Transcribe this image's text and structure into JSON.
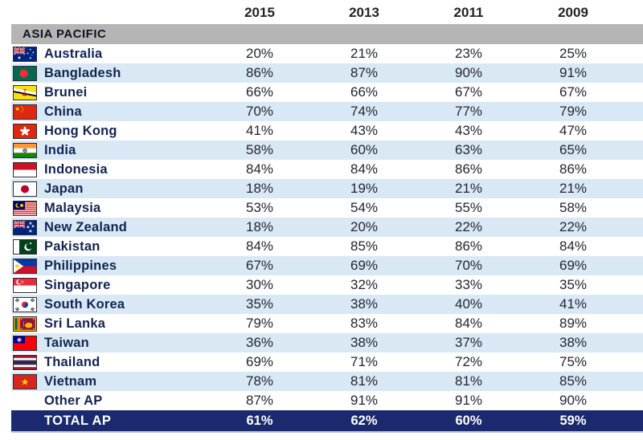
{
  "header": {
    "years": [
      "2015",
      "2013",
      "2011",
      "2009"
    ]
  },
  "section": {
    "label": "ASIA PACIFIC"
  },
  "table": {
    "columns": [
      "2015",
      "2013",
      "2011",
      "2009"
    ],
    "rows": [
      {
        "country": "Australia",
        "flag": "australia",
        "values": [
          "20%",
          "21%",
          "23%",
          "25%"
        ]
      },
      {
        "country": "Bangladesh",
        "flag": "bangladesh",
        "values": [
          "86%",
          "87%",
          "90%",
          "91%"
        ]
      },
      {
        "country": "Brunei",
        "flag": "brunei",
        "values": [
          "66%",
          "66%",
          "67%",
          "67%"
        ]
      },
      {
        "country": "China",
        "flag": "china",
        "values": [
          "70%",
          "74%",
          "77%",
          "79%"
        ]
      },
      {
        "country": "Hong Kong",
        "flag": "hongkong",
        "values": [
          "41%",
          "43%",
          "43%",
          "47%"
        ]
      },
      {
        "country": "India",
        "flag": "india",
        "values": [
          "58%",
          "60%",
          "63%",
          "65%"
        ]
      },
      {
        "country": "Indonesia",
        "flag": "indonesia",
        "values": [
          "84%",
          "84%",
          "86%",
          "86%"
        ]
      },
      {
        "country": "Japan",
        "flag": "japan",
        "values": [
          "18%",
          "19%",
          "21%",
          "21%"
        ]
      },
      {
        "country": "Malaysia",
        "flag": "malaysia",
        "values": [
          "53%",
          "54%",
          "55%",
          "58%"
        ]
      },
      {
        "country": "New Zealand",
        "flag": "newzealand",
        "values": [
          "18%",
          "20%",
          "22%",
          "22%"
        ]
      },
      {
        "country": "Pakistan",
        "flag": "pakistan",
        "values": [
          "84%",
          "85%",
          "86%",
          "84%"
        ]
      },
      {
        "country": "Philippines",
        "flag": "philippines",
        "values": [
          "67%",
          "69%",
          "70%",
          "69%"
        ]
      },
      {
        "country": "Singapore",
        "flag": "singapore",
        "values": [
          "30%",
          "32%",
          "33%",
          "35%"
        ]
      },
      {
        "country": "South Korea",
        "flag": "southkorea",
        "values": [
          "35%",
          "38%",
          "40%",
          "41%"
        ]
      },
      {
        "country": "Sri Lanka",
        "flag": "srilanka",
        "values": [
          "79%",
          "83%",
          "84%",
          "89%"
        ]
      },
      {
        "country": "Taiwan",
        "flag": "taiwan",
        "values": [
          "36%",
          "38%",
          "37%",
          "38%"
        ]
      },
      {
        "country": "Thailand",
        "flag": "thailand",
        "values": [
          "69%",
          "71%",
          "72%",
          "75%"
        ]
      },
      {
        "country": "Vietnam",
        "flag": "vietnam",
        "values": [
          "78%",
          "81%",
          "81%",
          "85%"
        ]
      },
      {
        "country": "Other AP",
        "flag": null,
        "values": [
          "87%",
          "91%",
          "91%",
          "90%"
        ]
      }
    ],
    "total": {
      "label": "TOTAL AP",
      "values": [
        "61%",
        "62%",
        "60%",
        "59%"
      ]
    }
  },
  "colors": {
    "row_alt": "#d9e8f5",
    "section_bg": "#b5b5b5",
    "total_bg": "#1b2a6e",
    "country_text": "#132451",
    "value_text": "#242530"
  },
  "chart_data": {
    "type": "table",
    "title": "ASIA PACIFIC",
    "columns": [
      "2015",
      "2013",
      "2011",
      "2009"
    ],
    "units": "percent",
    "rows": [
      {
        "label": "Australia",
        "values": [
          20,
          21,
          23,
          25
        ]
      },
      {
        "label": "Bangladesh",
        "values": [
          86,
          87,
          90,
          91
        ]
      },
      {
        "label": "Brunei",
        "values": [
          66,
          66,
          67,
          67
        ]
      },
      {
        "label": "China",
        "values": [
          70,
          74,
          77,
          79
        ]
      },
      {
        "label": "Hong Kong",
        "values": [
          41,
          43,
          43,
          47
        ]
      },
      {
        "label": "India",
        "values": [
          58,
          60,
          63,
          65
        ]
      },
      {
        "label": "Indonesia",
        "values": [
          84,
          84,
          86,
          86
        ]
      },
      {
        "label": "Japan",
        "values": [
          18,
          19,
          21,
          21
        ]
      },
      {
        "label": "Malaysia",
        "values": [
          53,
          54,
          55,
          58
        ]
      },
      {
        "label": "New Zealand",
        "values": [
          18,
          20,
          22,
          22
        ]
      },
      {
        "label": "Pakistan",
        "values": [
          84,
          85,
          86,
          84
        ]
      },
      {
        "label": "Philippines",
        "values": [
          67,
          69,
          70,
          69
        ]
      },
      {
        "label": "Singapore",
        "values": [
          30,
          32,
          33,
          35
        ]
      },
      {
        "label": "South Korea",
        "values": [
          35,
          38,
          40,
          41
        ]
      },
      {
        "label": "Sri Lanka",
        "values": [
          79,
          83,
          84,
          89
        ]
      },
      {
        "label": "Taiwan",
        "values": [
          36,
          38,
          37,
          38
        ]
      },
      {
        "label": "Thailand",
        "values": [
          69,
          71,
          72,
          75
        ]
      },
      {
        "label": "Vietnam",
        "values": [
          78,
          81,
          81,
          85
        ]
      },
      {
        "label": "Other AP",
        "values": [
          87,
          91,
          91,
          90
        ]
      },
      {
        "label": "TOTAL AP",
        "values": [
          61,
          62,
          60,
          59
        ]
      }
    ]
  }
}
